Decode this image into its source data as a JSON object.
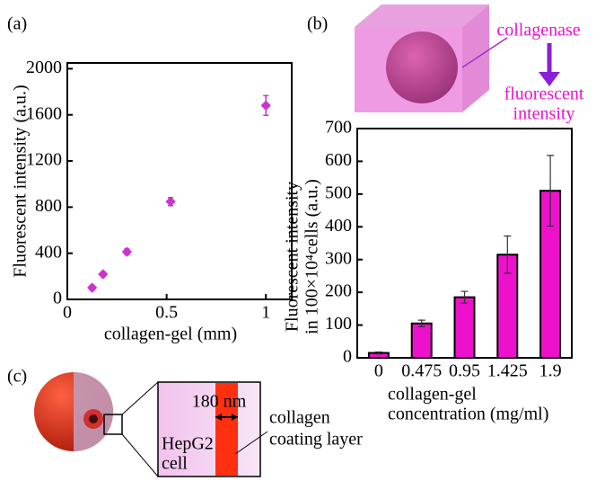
{
  "panel_labels": [
    "(a)",
    "(b)",
    "(c)"
  ],
  "chart_data": [
    {
      "type": "scatter",
      "x_label": "collagen-gel (mm)",
      "y_label": "Fluorescent intensity (a.u.)",
      "x": [
        0.125,
        0.18,
        0.3,
        0.52,
        1
      ],
      "values": [
        101,
        218,
        412,
        848,
        1681
      ],
      "errors": [
        20,
        20,
        25,
        35,
        85
      ],
      "color": "#cc33cc",
      "xlim": [
        0,
        1.13
      ],
      "ylim": [
        0,
        2050
      ],
      "xticks": [
        0,
        0.5,
        1
      ],
      "yticks": [
        0,
        400,
        800,
        1200,
        1600,
        2000
      ]
    },
    {
      "type": "bar",
      "x_label": [
        "collagen-gel",
        "concentration (mg/ml)"
      ],
      "y_label": [
        "Fluorescent intensity",
        "in 100×10⁴cells (a.u.)"
      ],
      "categories": [
        "0",
        "0.475",
        "0.95",
        "1.425",
        "1.9"
      ],
      "values": [
        15,
        105,
        185,
        315,
        510
      ],
      "errors": [
        3,
        10,
        18,
        57,
        108
      ],
      "color": "#ee11cc",
      "ylim": [
        0,
        700
      ],
      "yticks": [
        0,
        100,
        200,
        300,
        400,
        500,
        600,
        700
      ]
    }
  ],
  "diagram_b": {
    "enzyme": "collagenase",
    "output": [
      "fluorescent",
      "intensity"
    ]
  },
  "diagram_c": {
    "thickness": "180 nm",
    "cell": [
      "HepG2",
      "cell"
    ],
    "layer": [
      "collagen",
      "coating layer"
    ]
  }
}
